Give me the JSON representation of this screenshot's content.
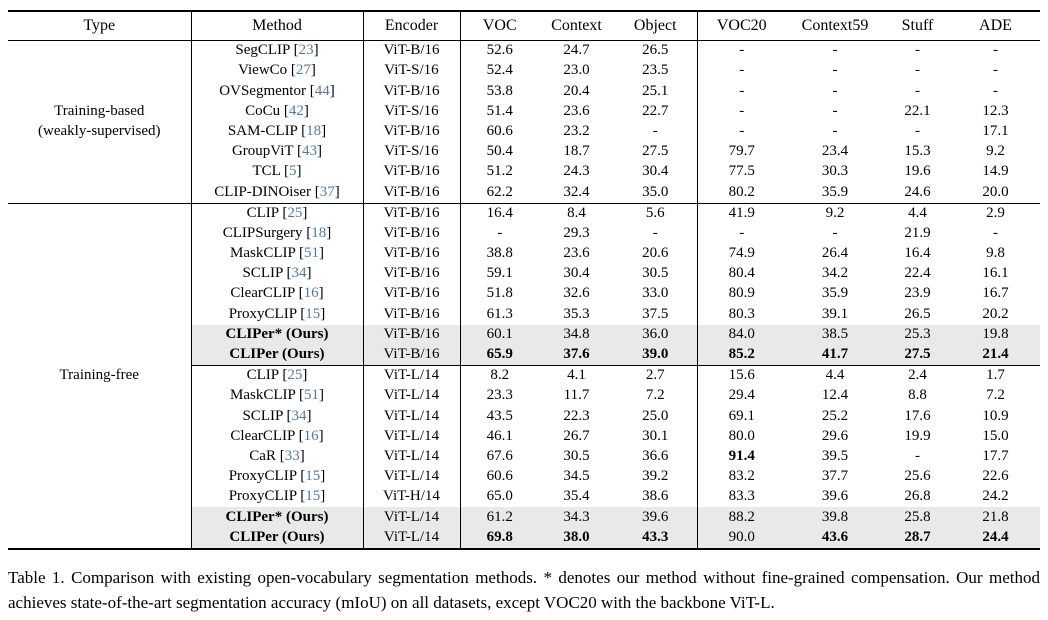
{
  "colors": {
    "cite_link": "#4d7ba7",
    "highlight_row": "#e9e9e9",
    "text": "#000000"
  },
  "caption": "Table 1. Comparison with existing open-vocabulary segmentation methods. * denotes our method without fine-grained compensation. Our method achieves state-of-the-art segmentation accuracy (mIoU) on all datasets, except VOC20 with the backbone ViT-L.",
  "table": {
    "columns": [
      "Type",
      "Method",
      "Encoder",
      "VOC",
      "Context",
      "Object",
      "VOC20",
      "Context59",
      "Stuff",
      "ADE"
    ],
    "sections": [
      {
        "type_label_lines": [
          "Training-based",
          "(weakly-supervised)"
        ],
        "groups": [
          {
            "rows": [
              {
                "method": "SegCLIP",
                "cite": "23",
                "encoder": "ViT-B/16",
                "values": [
                  "52.6",
                  "24.7",
                  "26.5",
                  "-",
                  "-",
                  "-",
                  "-"
                ]
              },
              {
                "method": "ViewCo",
                "cite": "27",
                "encoder": "ViT-S/16",
                "values": [
                  "52.4",
                  "23.0",
                  "23.5",
                  "-",
                  "-",
                  "-",
                  "-"
                ]
              },
              {
                "method": "OVSegmentor",
                "cite": "44",
                "encoder": "ViT-B/16",
                "values": [
                  "53.8",
                  "20.4",
                  "25.1",
                  "-",
                  "-",
                  "-",
                  "-"
                ]
              },
              {
                "method": "CoCu",
                "cite": "42",
                "encoder": "ViT-S/16",
                "values": [
                  "51.4",
                  "23.6",
                  "22.7",
                  "-",
                  "-",
                  "22.1",
                  "12.3"
                ]
              },
              {
                "method": "SAM-CLIP",
                "cite": "18",
                "encoder": "ViT-B/16",
                "values": [
                  "60.6",
                  "23.2",
                  "-",
                  "-",
                  "-",
                  "-",
                  "17.1"
                ]
              },
              {
                "method": "GroupViT",
                "cite": "43",
                "encoder": "ViT-S/16",
                "values": [
                  "50.4",
                  "18.7",
                  "27.5",
                  "79.7",
                  "23.4",
                  "15.3",
                  "9.2"
                ]
              },
              {
                "method": "TCL",
                "cite": "5",
                "encoder": "ViT-B/16",
                "values": [
                  "51.2",
                  "24.3",
                  "30.4",
                  "77.5",
                  "30.3",
                  "19.6",
                  "14.9"
                ]
              },
              {
                "method": "CLIP-DINOiser",
                "cite": "37",
                "encoder": "ViT-B/16",
                "values": [
                  "62.2",
                  "32.4",
                  "35.0",
                  "80.2",
                  "35.9",
                  "24.6",
                  "20.0"
                ]
              }
            ]
          }
        ]
      },
      {
        "type_label_lines": [
          "Training-free"
        ],
        "groups": [
          {
            "rows": [
              {
                "method": "CLIP",
                "cite": "25",
                "encoder": "ViT-B/16",
                "values": [
                  "16.4",
                  "8.4",
                  "5.6",
                  "41.9",
                  "9.2",
                  "4.4",
                  "2.9"
                ]
              },
              {
                "method": "CLIPSurgery",
                "cite": "18",
                "encoder": "ViT-B/16",
                "values": [
                  "-",
                  "29.3",
                  "-",
                  "-",
                  "-",
                  "21.9",
                  "-"
                ]
              },
              {
                "method": "MaskCLIP",
                "cite": "51",
                "encoder": "ViT-B/16",
                "values": [
                  "38.8",
                  "23.6",
                  "20.6",
                  "74.9",
                  "26.4",
                  "16.4",
                  "9.8"
                ]
              },
              {
                "method": "SCLIP",
                "cite": "34",
                "encoder": "ViT-B/16",
                "values": [
                  "59.1",
                  "30.4",
                  "30.5",
                  "80.4",
                  "34.2",
                  "22.4",
                  "16.1"
                ]
              },
              {
                "method": "ClearCLIP",
                "cite": "16",
                "encoder": "ViT-B/16",
                "values": [
                  "51.8",
                  "32.6",
                  "33.0",
                  "80.9",
                  "35.9",
                  "23.9",
                  "16.7"
                ]
              },
              {
                "method": "ProxyCLIP",
                "cite": "15",
                "encoder": "ViT-B/16",
                "values": [
                  "61.3",
                  "35.3",
                  "37.5",
                  "80.3",
                  "39.1",
                  "26.5",
                  "20.2"
                ]
              },
              {
                "method": "CLIPer* (Ours)",
                "cite": null,
                "encoder": "ViT-B/16",
                "highlight": true,
                "method_bold": true,
                "values": [
                  "60.1",
                  "34.8",
                  "36.0",
                  "84.0",
                  "38.5",
                  "25.3",
                  "19.8"
                ]
              },
              {
                "method": "CLIPer (Ours)",
                "cite": null,
                "encoder": "ViT-B/16",
                "highlight": true,
                "method_bold": true,
                "bold_values": [
                  0,
                  1,
                  2,
                  3,
                  4,
                  5,
                  6
                ],
                "values": [
                  "65.9",
                  "37.6",
                  "39.0",
                  "85.2",
                  "41.7",
                  "27.5",
                  "21.4"
                ]
              }
            ]
          },
          {
            "rows": [
              {
                "method": "CLIP",
                "cite": "25",
                "encoder": "ViT-L/14",
                "values": [
                  "8.2",
                  "4.1",
                  "2.7",
                  "15.6",
                  "4.4",
                  "2.4",
                  "1.7"
                ]
              },
              {
                "method": "MaskCLIP",
                "cite": "51",
                "encoder": "ViT-L/14",
                "values": [
                  "23.3",
                  "11.7",
                  "7.2",
                  "29.4",
                  "12.4",
                  "8.8",
                  "7.2"
                ]
              },
              {
                "method": "SCLIP",
                "cite": "34",
                "encoder": "ViT-L/14",
                "values": [
                  "43.5",
                  "22.3",
                  "25.0",
                  "69.1",
                  "25.2",
                  "17.6",
                  "10.9"
                ]
              },
              {
                "method": "ClearCLIP",
                "cite": "16",
                "encoder": "ViT-L/14",
                "values": [
                  "46.1",
                  "26.7",
                  "30.1",
                  "80.0",
                  "29.6",
                  "19.9",
                  "15.0"
                ]
              },
              {
                "method": "CaR",
                "cite": "33",
                "encoder": "ViT-L/14",
                "bold_values": [
                  3
                ],
                "values": [
                  "67.6",
                  "30.5",
                  "36.6",
                  "91.4",
                  "39.5",
                  "-",
                  "17.7"
                ]
              },
              {
                "method": "ProxyCLIP",
                "cite": "15",
                "encoder": "ViT-L/14",
                "values": [
                  "60.6",
                  "34.5",
                  "39.2",
                  "83.2",
                  "37.7",
                  "25.6",
                  "22.6"
                ]
              },
              {
                "method": "ProxyCLIP",
                "cite": "15",
                "encoder": "ViT-H/14",
                "values": [
                  "65.0",
                  "35.4",
                  "38.6",
                  "83.3",
                  "39.6",
                  "26.8",
                  "24.2"
                ]
              },
              {
                "method": "CLIPer* (Ours)",
                "cite": null,
                "encoder": "ViT-L/14",
                "highlight": true,
                "method_bold": true,
                "values": [
                  "61.2",
                  "34.3",
                  "39.6",
                  "88.2",
                  "39.8",
                  "25.8",
                  "21.8"
                ]
              },
              {
                "method": "CLIPer (Ours)",
                "cite": null,
                "encoder": "ViT-L/14",
                "highlight": true,
                "method_bold": true,
                "bold_values": [
                  0,
                  1,
                  2,
                  4,
                  5,
                  6
                ],
                "values": [
                  "69.8",
                  "38.0",
                  "43.3",
                  "90.0",
                  "43.6",
                  "28.7",
                  "24.4"
                ]
              }
            ]
          }
        ]
      }
    ]
  }
}
